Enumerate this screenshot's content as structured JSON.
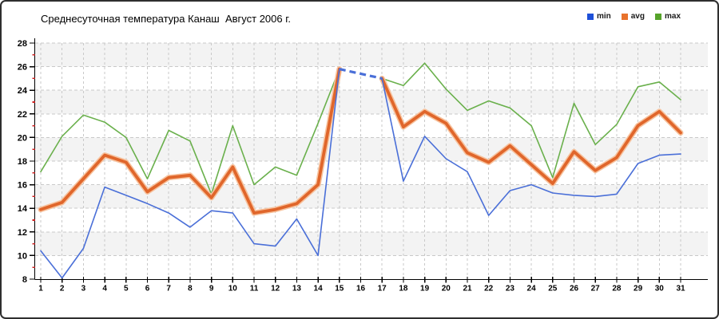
{
  "window": {
    "background": "#ffffff",
    "border_color": "#2e2e2e"
  },
  "header": {
    "title": "Среднесуточная температура Канаш  Август 2006 г."
  },
  "legend": {
    "position": "top-right",
    "items": [
      {
        "label": "min",
        "color": "#1e50d8"
      },
      {
        "label": "avg",
        "color": "#e8722c"
      },
      {
        "label": "max",
        "color": "#56a32a"
      }
    ]
  },
  "chart_data": {
    "type": "line",
    "title": "Среднесуточная температура Канаш  Август 2006 г.",
    "xlabel": "",
    "ylabel": "",
    "xlim": [
      1,
      31
    ],
    "ylim": [
      8,
      28
    ],
    "grid": true,
    "grid_style": "dashed",
    "grid_color": "#c9c9c9",
    "band_color": "#f3f3f3",
    "axis_color": "#000000",
    "minor_tick_color": "#cc2020",
    "legend_position": "top-right",
    "x": [
      1,
      2,
      3,
      4,
      5,
      6,
      7,
      8,
      9,
      10,
      11,
      12,
      13,
      14,
      15,
      16,
      17,
      18,
      19,
      20,
      21,
      22,
      23,
      24,
      25,
      26,
      27,
      28,
      29,
      30,
      31
    ],
    "y_ticks": [
      8,
      10,
      12,
      14,
      16,
      18,
      20,
      22,
      24,
      26,
      28
    ],
    "missing_data_days": [
      16
    ],
    "series": [
      {
        "name": "max",
        "color": "#6ab04c",
        "width": 1.6,
        "values": [
          17.1,
          20.1,
          21.9,
          21.3,
          20.0,
          16.5,
          20.6,
          19.7,
          15.2,
          21.0,
          16.0,
          17.5,
          16.8,
          21.2,
          25.8,
          null,
          25.0,
          24.4,
          26.3,
          24.1,
          22.3,
          23.1,
          22.5,
          21.0,
          16.6,
          22.9,
          19.4,
          21.1,
          24.3,
          24.7,
          23.2
        ],
        "bridge": null
      },
      {
        "name": "avg",
        "color": "#e0662b",
        "halo_color": "#f7c29d",
        "width": 3.8,
        "values": [
          13.9,
          14.5,
          16.5,
          18.5,
          17.9,
          15.4,
          16.6,
          16.8,
          14.9,
          17.5,
          13.6,
          13.9,
          14.4,
          16.0,
          25.8,
          null,
          25.0,
          20.9,
          22.2,
          21.2,
          18.7,
          17.9,
          19.3,
          17.7,
          16.1,
          18.8,
          17.2,
          18.3,
          21.0,
          22.2,
          20.4
        ],
        "bridge": null
      },
      {
        "name": "min",
        "color": "#4a6fd8",
        "width": 1.6,
        "values": [
          10.4,
          8.1,
          10.6,
          15.8,
          15.1,
          14.4,
          13.6,
          12.4,
          13.8,
          13.6,
          11.0,
          10.8,
          13.1,
          10.0,
          25.8,
          null,
          25.0,
          16.3,
          20.1,
          18.2,
          17.1,
          13.4,
          15.5,
          16.0,
          15.3,
          15.1,
          15.0,
          15.2,
          17.8,
          18.5,
          18.6
        ],
        "bridge": {
          "from_day": 15,
          "to_day": 17,
          "style": "dashed",
          "width": 3.2
        }
      }
    ]
  }
}
